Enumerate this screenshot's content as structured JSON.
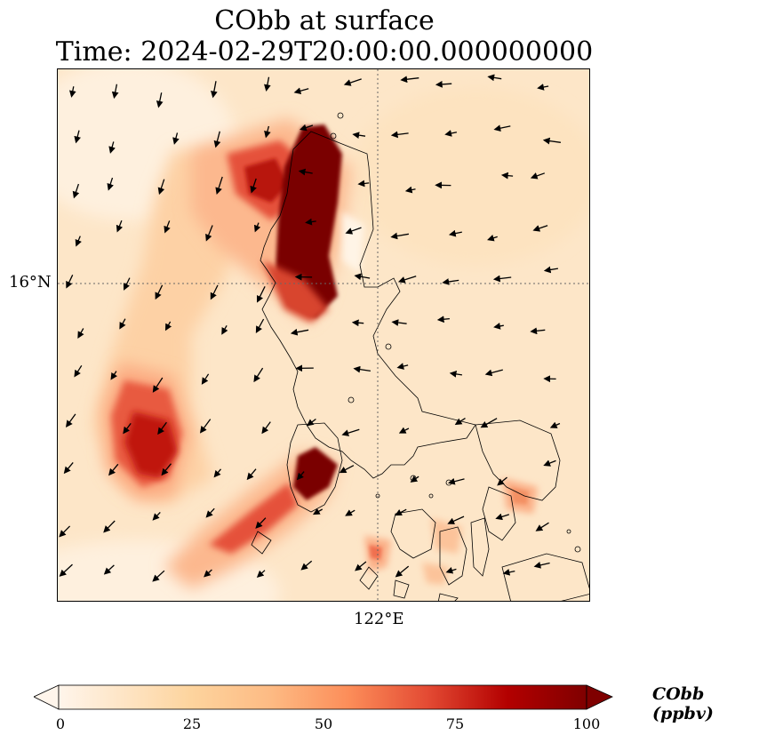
{
  "title": "CObb at surface",
  "subtitle": "Time: 2024-02-29T20:00:00.000000000",
  "axes": {
    "lat_tick_label": "16°N",
    "lon_tick_label": "122°E"
  },
  "colorbar": {
    "label": "CObb (ppbv)",
    "min": 0,
    "max": 100,
    "extend": "both",
    "ticks": [
      {
        "value": 0,
        "label": "0"
      },
      {
        "value": 25,
        "label": "25"
      },
      {
        "value": 50,
        "label": "50"
      },
      {
        "value": 75,
        "label": "75"
      },
      {
        "value": 100,
        "label": "100"
      }
    ],
    "colormap": [
      "#fff5eb",
      "#fdd49e",
      "#fdbb84",
      "#fc8d59",
      "#e34a33",
      "#b30000",
      "#7f0000"
    ]
  },
  "map": {
    "background_color": "#fde6c8",
    "gridlines": "dotted",
    "plumes": [
      {
        "name": "north-luzon-plume",
        "max_value": 100
      },
      {
        "name": "southwest-offshore-plume",
        "max_value": 90
      },
      {
        "name": "mindoro-plume",
        "max_value": 100
      },
      {
        "name": "southern-scattered-fires",
        "max_value": 45
      }
    ]
  }
}
